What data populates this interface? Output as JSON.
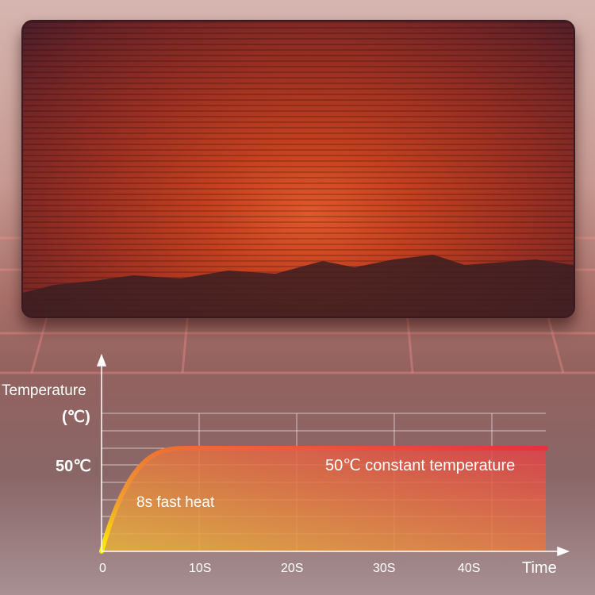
{
  "chart_data": {
    "type": "line",
    "xlabel": "Time",
    "ylabel": "Temperature",
    "yunit": "(℃)",
    "x_ticks": [
      "0",
      "10S",
      "20S",
      "30S",
      "40S"
    ],
    "y_ticks": [
      "50℃"
    ],
    "series": [
      {
        "x": [
          0,
          2,
          4,
          6,
          8,
          10,
          20,
          30,
          40,
          45
        ],
        "y": [
          0,
          28,
          40,
          46,
          50,
          50,
          50,
          50,
          50,
          50
        ]
      }
    ],
    "annotations": [
      "8s fast heat",
      "50℃ constant temperature"
    ],
    "xlim": [
      0,
      45
    ],
    "grid": true,
    "colors": {
      "curve_start": "#ffee00",
      "curve_end": "#e8303c",
      "fill_start": "#e6b33a",
      "fill_end": "#e0404a"
    }
  }
}
